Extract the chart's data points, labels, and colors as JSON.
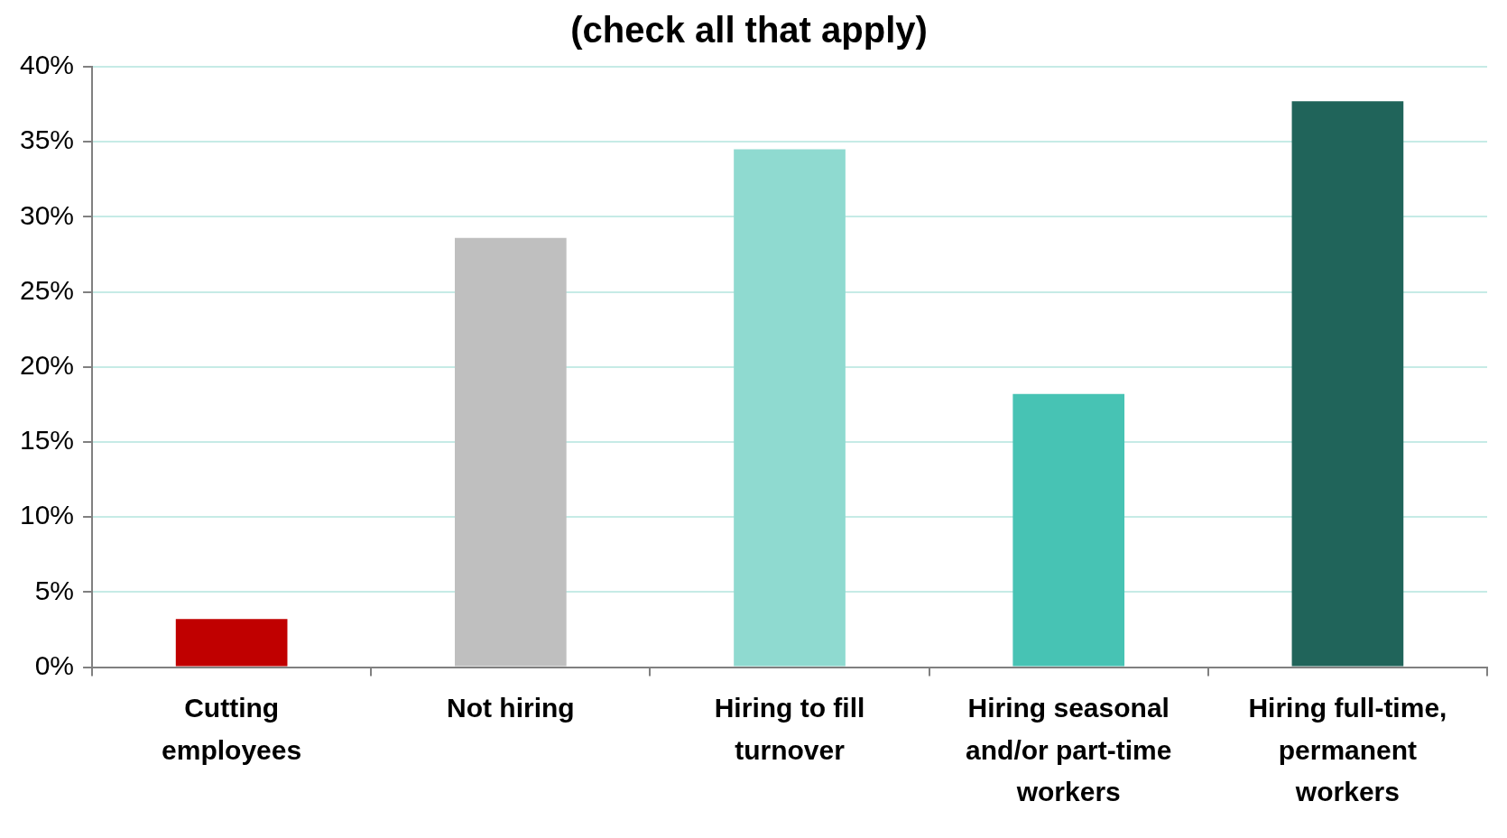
{
  "chart_data": {
    "type": "bar",
    "title": "(check all that apply)",
    "categories": [
      "Cutting employees",
      "Not hiring",
      "Hiring to fill turnover",
      "Hiring seasonal and/or part-time workers",
      "Hiring full-time, permanent workers"
    ],
    "values": [
      3.2,
      28.6,
      34.5,
      18.2,
      37.7
    ],
    "colors": [
      "#c00000",
      "#bfbfbf",
      "#8fdad0",
      "#47c3b4",
      "#20645a"
    ],
    "ylim": [
      0,
      40
    ],
    "yticks": [
      {
        "value": 0,
        "label": "0%"
      },
      {
        "value": 5,
        "label": "5%"
      },
      {
        "value": 10,
        "label": "10%"
      },
      {
        "value": 15,
        "label": "15%"
      },
      {
        "value": 20,
        "label": "20%"
      },
      {
        "value": 25,
        "label": "25%"
      },
      {
        "value": 30,
        "label": "30%"
      },
      {
        "value": 35,
        "label": "35%"
      },
      {
        "value": 40,
        "label": "40%"
      }
    ],
    "grid": "y"
  }
}
